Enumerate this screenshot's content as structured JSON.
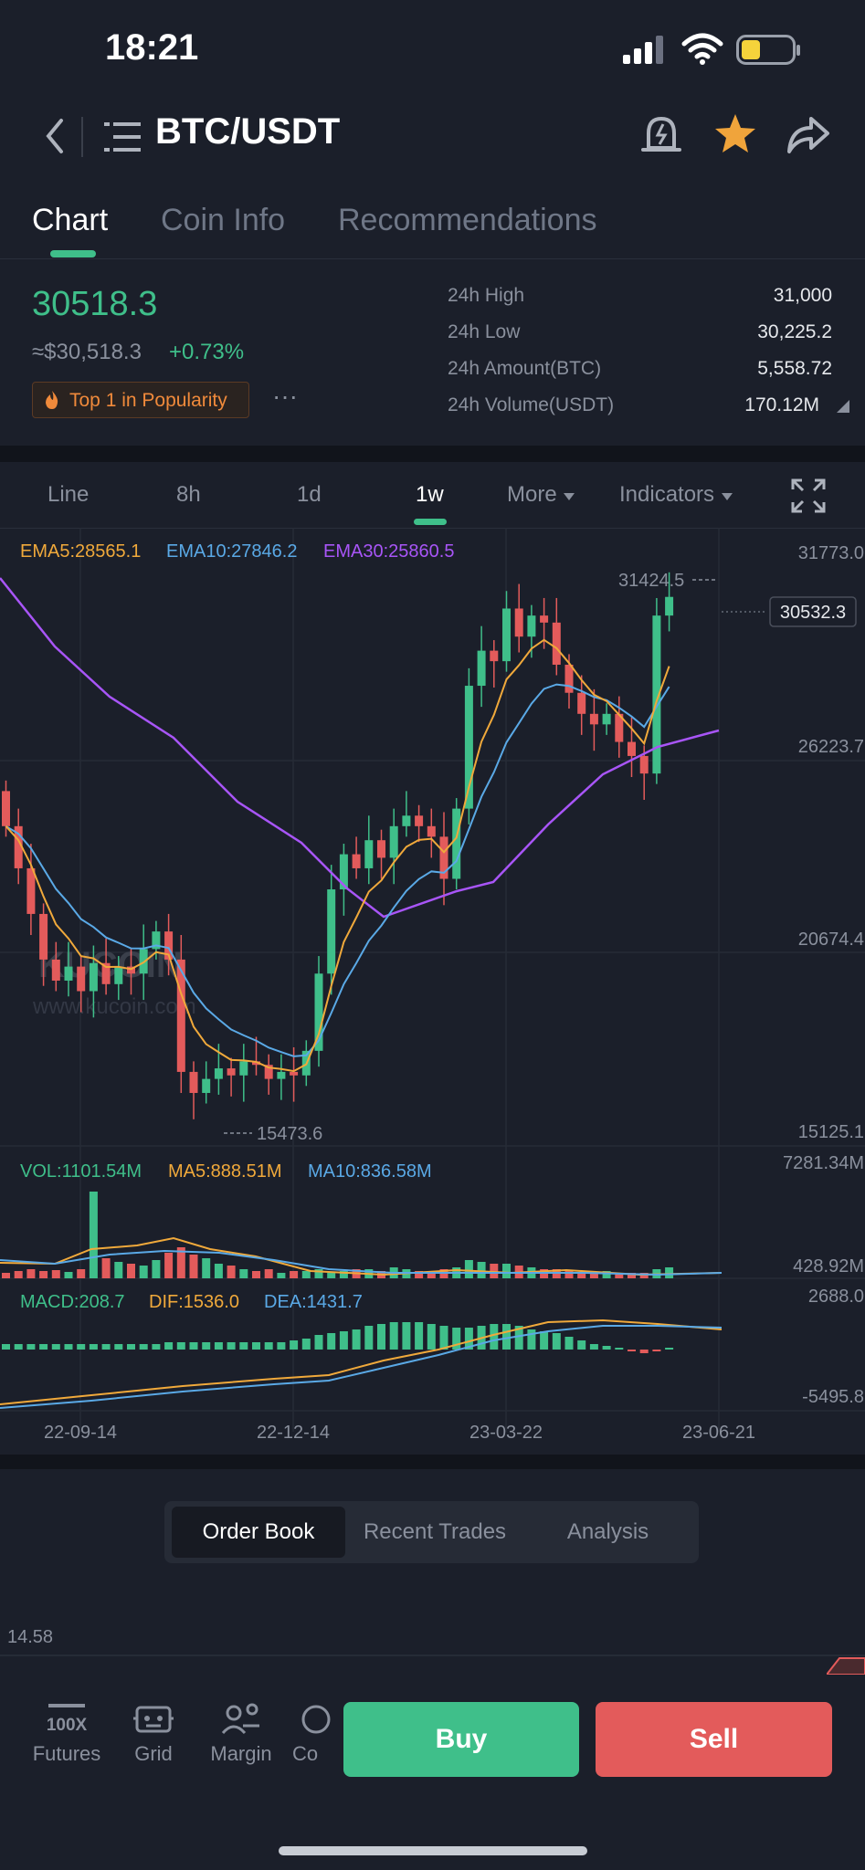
{
  "status_bar": {
    "time": "18:21"
  },
  "header": {
    "pair": "BTC/USDT"
  },
  "tabs": [
    {
      "label": "Chart"
    },
    {
      "label": "Coin Info"
    },
    {
      "label": "Recommendations"
    }
  ],
  "ticker": {
    "price": "30518.3",
    "fiat": "≈$30,518.3",
    "change": "+0.73%",
    "badge": "Top 1 in Popularity",
    "more": "···",
    "stats": [
      {
        "label": "24h High",
        "value": "31,000"
      },
      {
        "label": "24h Low",
        "value": "30,225.2"
      },
      {
        "label": "24h Amount(BTC)",
        "value": "5,558.72"
      },
      {
        "label": "24h Volume(USDT)",
        "value": "170.12M"
      }
    ]
  },
  "timeframes": {
    "items": [
      "Line",
      "8h",
      "1d",
      "1w"
    ],
    "more": "More",
    "indicators": "Indicators"
  },
  "chart": {
    "ema5": "EMA5:28565.1",
    "ema10": "EMA10:27846.2",
    "ema30": "EMA30:25860.5",
    "price_axis": [
      "31773.0",
      "26223.7",
      "20674.4",
      "15125.1"
    ],
    "high_label": "31424.5",
    "low_label": "15473.6",
    "last_price": "30532.3",
    "watermark": "KUCOIN",
    "watermark_url": "www.kucoin.com",
    "vol": "VOL:1101.54M",
    "vol_ma5": "MA5:888.51M",
    "vol_ma10": "MA10:836.58M",
    "vol_axis": [
      "7281.34M",
      "428.92M"
    ],
    "macd": "MACD:208.7",
    "dif": "DIF:1536.0",
    "dea": "DEA:1431.7",
    "macd_axis": [
      "2688.0",
      "-5495.8"
    ],
    "dates": [
      "22-09-14",
      "22-12-14",
      "23-03-22",
      "23-06-21"
    ],
    "colors": {
      "up": "#3fbf8a",
      "down": "#e35b5b",
      "ema5": "#f0a93b",
      "ema10": "#5aa9e6",
      "ema30": "#a855f7"
    }
  },
  "bottom_tabs": [
    "Order Book",
    "Recent Trades",
    "Analysis"
  ],
  "orderbook_value": "14.58",
  "bottom_nav": [
    {
      "label": "Futures",
      "icon": "futures-100x-icon"
    },
    {
      "label": "Grid",
      "icon": "grid-bot-icon"
    },
    {
      "label": "Margin",
      "icon": "margin-icon"
    },
    {
      "label": "Co",
      "icon": "convert-icon"
    }
  ],
  "buy": "Buy",
  "sell": "Sell"
}
